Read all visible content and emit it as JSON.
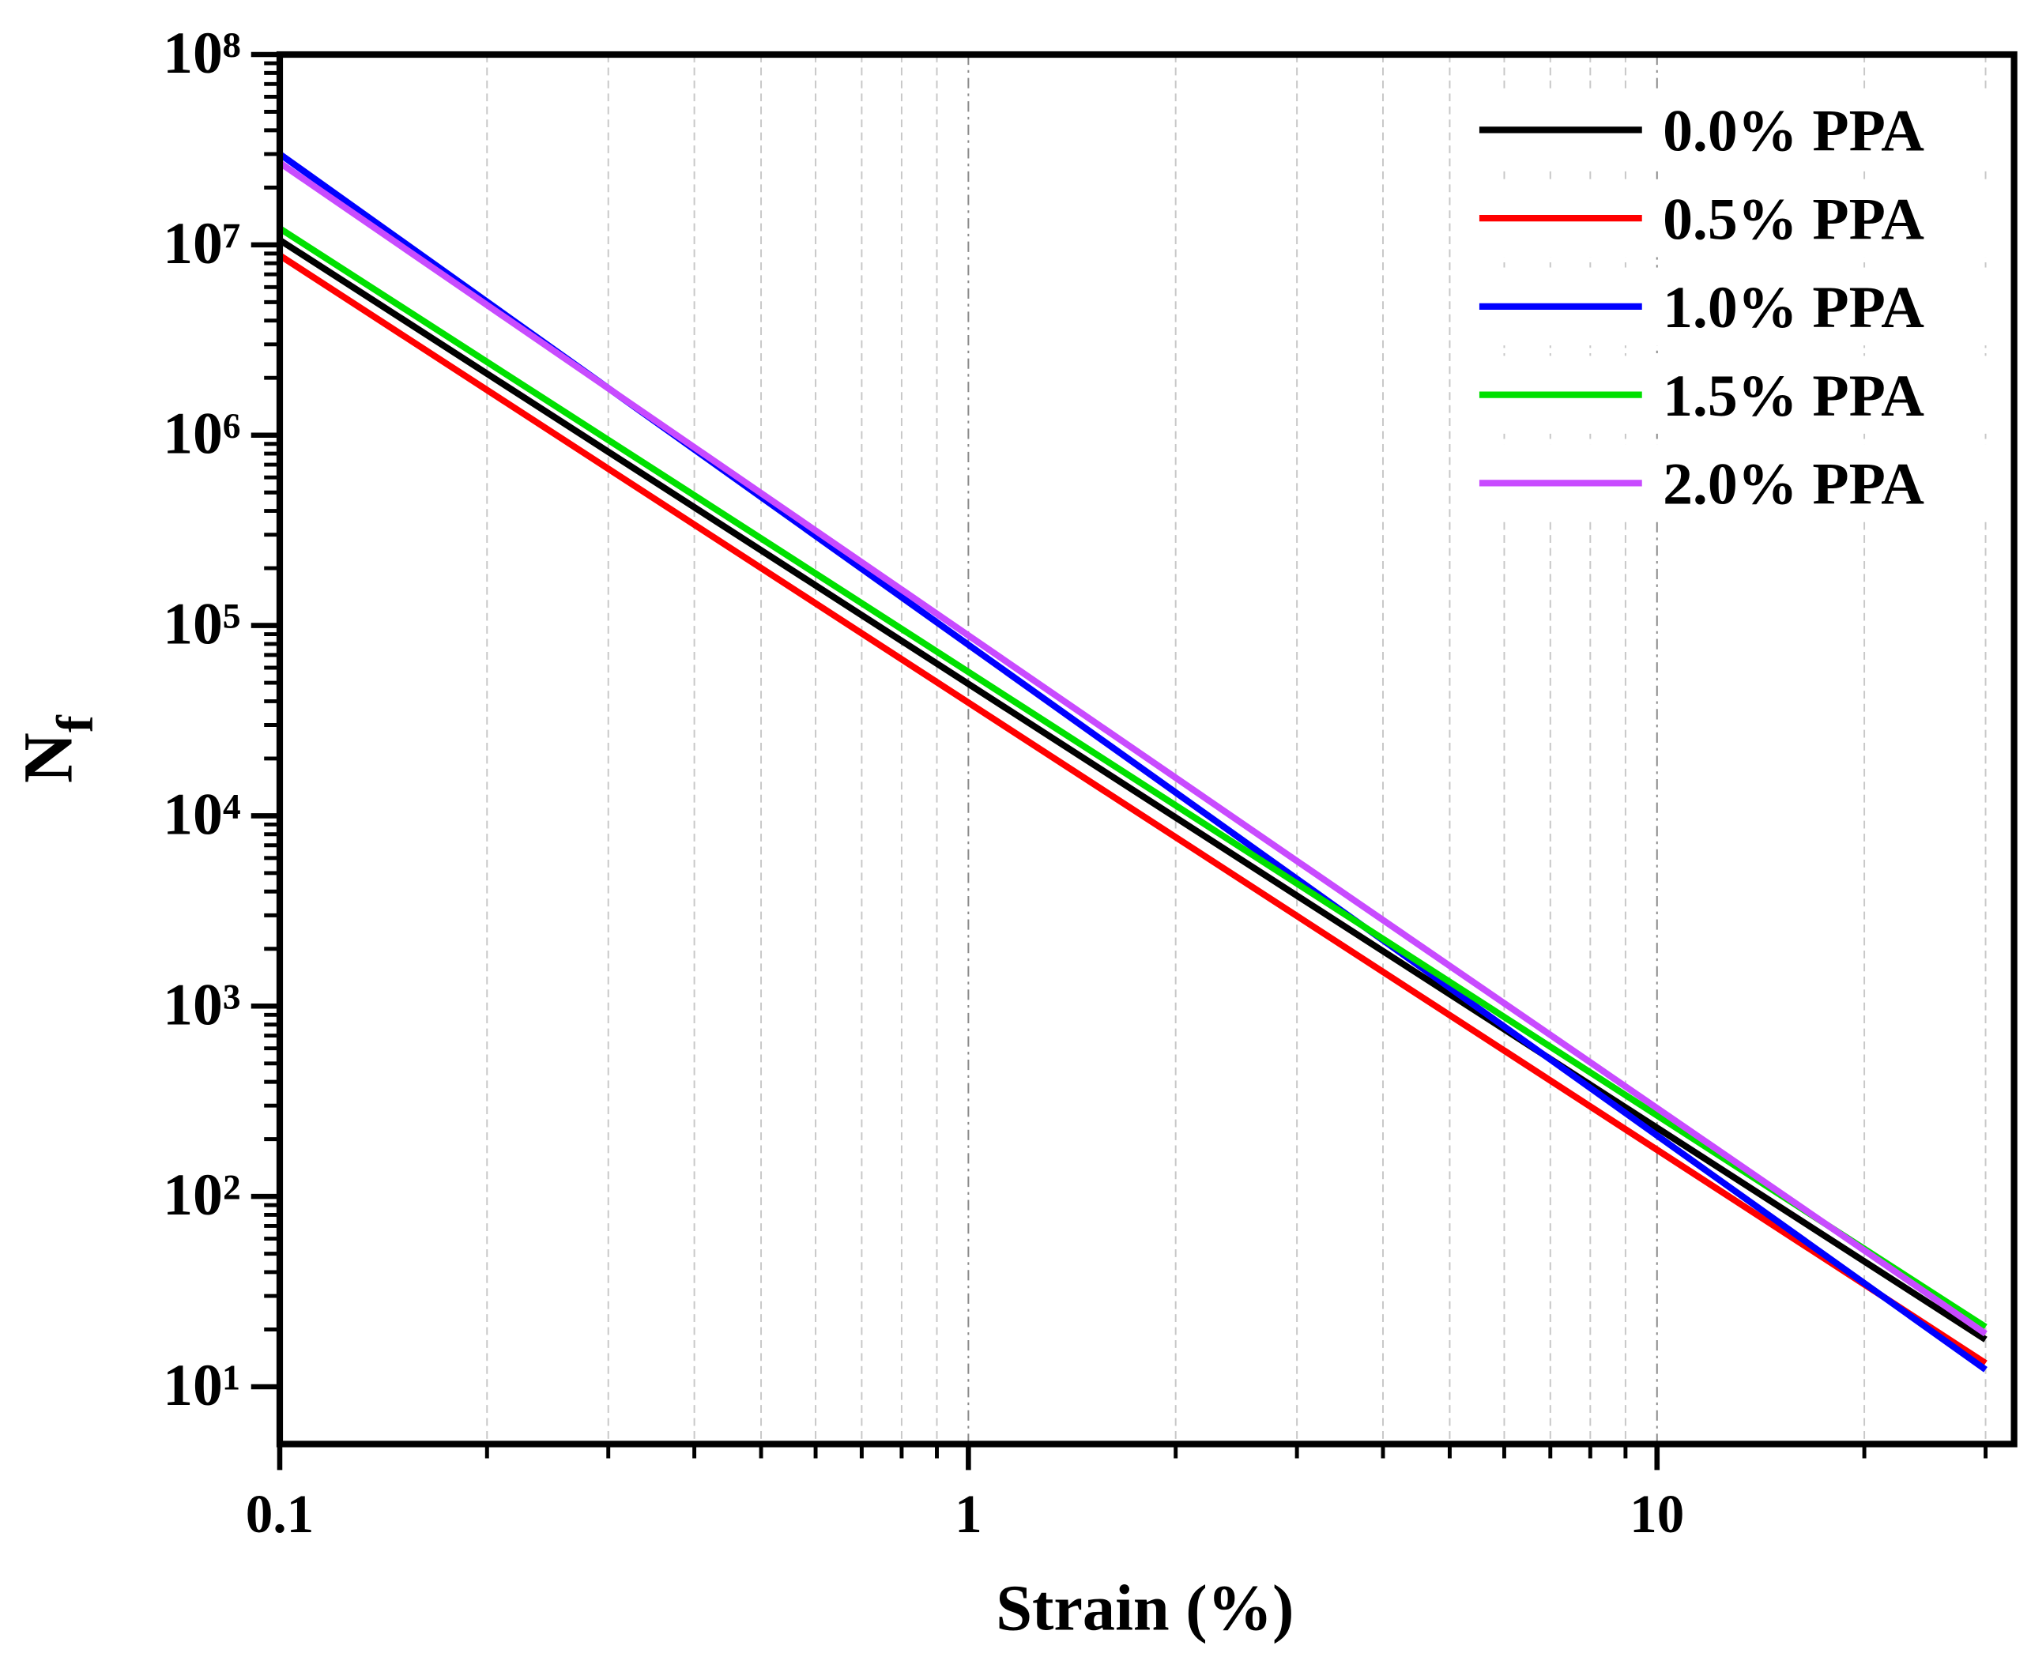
{
  "chart_data": {
    "type": "line",
    "xlabel": "Strain (%)",
    "ylabel": {
      "text": "N",
      "subscript": "f"
    },
    "xscale": "log",
    "yscale": "log",
    "xlim": [
      0.1,
      33
    ],
    "ylim": [
      5,
      100000000
    ],
    "xticks": [
      0.1,
      1,
      10
    ],
    "xminorticks": [
      0.2,
      0.3,
      0.4,
      0.5,
      0.6,
      0.7,
      0.8,
      0.9,
      2,
      3,
      4,
      5,
      6,
      7,
      8,
      9,
      20,
      30
    ],
    "yticks": [
      {
        "value": 10,
        "label": "10¹"
      },
      {
        "value": 100,
        "label": "10²"
      },
      {
        "value": 1000,
        "label": "10³"
      },
      {
        "value": 10000,
        "label": "10⁴"
      },
      {
        "value": 100000,
        "label": "10⁵"
      },
      {
        "value": 1000000,
        "label": "10⁶"
      },
      {
        "value": 10000000,
        "label": "10⁷"
      },
      {
        "value": 100000000,
        "label": "10⁸"
      }
    ],
    "yminorticks": [
      20,
      30,
      40,
      50,
      60,
      70,
      80,
      90,
      200,
      300,
      400,
      500,
      600,
      700,
      800,
      900,
      2000,
      3000,
      4000,
      5000,
      6000,
      7000,
      8000,
      9000,
      20000,
      30000,
      40000,
      50000,
      60000,
      70000,
      80000,
      90000,
      200000,
      300000,
      400000,
      500000,
      600000,
      700000,
      800000,
      900000,
      2000000,
      3000000,
      4000000,
      5000000,
      6000000,
      7000000,
      8000000,
      9000000,
      20000000,
      30000000,
      40000000,
      50000000,
      60000000,
      70000000,
      80000000,
      90000000
    ],
    "grid": "x",
    "legend": "upper right",
    "x": [
      0.1,
      30
    ],
    "series": [
      {
        "name": "0.0% PPA",
        "color": "#000000",
        "values": [
          10600000,
          17.7
        ]
      },
      {
        "name": "0.5% PPA",
        "color": "#ff0000",
        "values": [
          8800000,
          13.3
        ]
      },
      {
        "name": "1.0% PPA",
        "color": "#0000ff",
        "values": [
          30000000,
          12.3
        ]
      },
      {
        "name": "1.5% PPA",
        "color": "#00e000",
        "values": [
          12200000,
          20.6
        ]
      },
      {
        "name": "2.0% PPA",
        "color": "#c84bff",
        "values": [
          27000000,
          19
        ]
      }
    ]
  }
}
